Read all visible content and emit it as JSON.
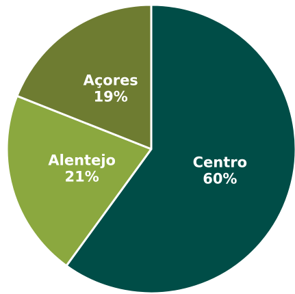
{
  "chart_data": {
    "type": "pie",
    "categories": [
      "Centro",
      "Alentejo",
      "Açores"
    ],
    "values": [
      60,
      21,
      19
    ],
    "value_labels": [
      "60%",
      "21%",
      "19%"
    ],
    "colors": [
      "#004d47",
      "#8ba83f",
      "#6e7c31"
    ]
  }
}
